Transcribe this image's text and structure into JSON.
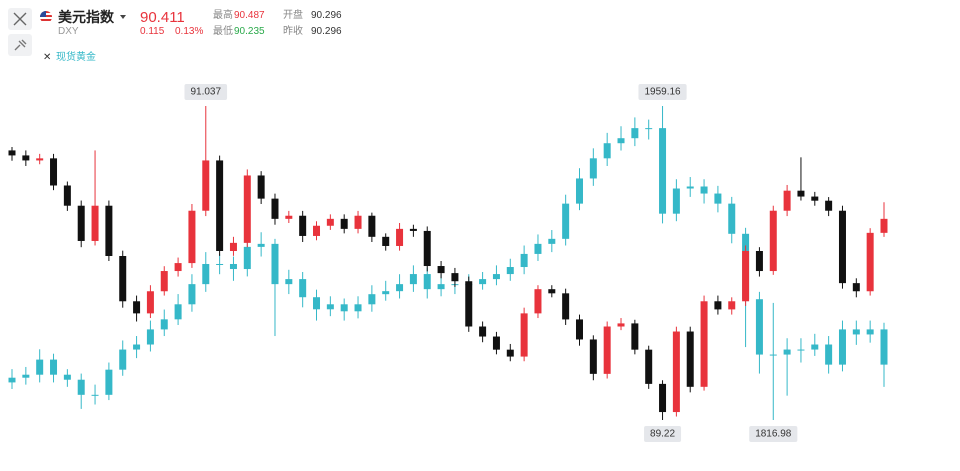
{
  "header": {
    "title": "美元指数",
    "code": "DXY",
    "last": 90.411,
    "change": 0.115,
    "change_pct": "0.13%",
    "high_label": "最高",
    "high": 90.487,
    "open_label": "开盘",
    "open": 90.296,
    "low_label": "最低",
    "low": 90.235,
    "prev_label": "昨收",
    "prev": 90.296
  },
  "chart_data": {
    "type": "candlestick",
    "series": [
      {
        "name": "美元指数",
        "up_color": "#e8333c",
        "down_color": "#111111",
        "open": [
          90.78,
          90.751,
          90.722,
          90.734,
          90.577,
          90.46,
          90.256,
          90.46,
          90.169,
          89.907,
          89.837,
          89.965,
          90.082,
          90.128,
          90.431,
          90.722,
          90.198,
          90.245,
          90.635,
          90.501,
          90.384,
          90.402,
          90.285,
          90.344,
          90.384,
          90.326,
          90.402,
          90.28,
          90.227,
          90.326,
          90.314,
          90.111,
          90.07,
          90.023,
          89.761,
          89.703,
          89.627,
          89.587,
          89.837,
          89.977,
          89.953,
          89.802,
          89.686,
          89.487,
          89.761,
          89.779,
          89.627,
          89.429,
          89.266,
          89.732,
          89.412,
          89.907,
          89.86,
          89.907,
          90.198,
          90.082,
          90.431,
          90.547,
          90.513,
          90.489,
          90.431,
          90.012,
          89.965,
          90.303
        ],
        "high": [
          90.8,
          90.78,
          90.76,
          90.76,
          90.6,
          90.49,
          90.78,
          90.49,
          90.2,
          89.94,
          90.0,
          90.11,
          90.16,
          90.47,
          91.037,
          90.75,
          90.28,
          90.67,
          90.66,
          90.53,
          90.43,
          90.43,
          90.37,
          90.41,
          90.41,
          90.43,
          90.42,
          90.3,
          90.36,
          90.35,
          90.34,
          90.14,
          90.1,
          90.05,
          89.79,
          89.73,
          89.66,
          89.87,
          90.0,
          90.0,
          89.98,
          89.83,
          89.71,
          89.79,
          89.81,
          89.8,
          89.65,
          89.45,
          89.76,
          89.76,
          89.94,
          89.94,
          89.93,
          90.23,
          90.22,
          90.46,
          90.58,
          90.74,
          90.54,
          90.51,
          90.46,
          90.04,
          90.33,
          90.48
        ],
        "low": [
          90.72,
          90.69,
          90.7,
          90.55,
          90.43,
          90.22,
          90.23,
          90.14,
          89.87,
          89.79,
          89.81,
          89.94,
          90.05,
          90.1,
          90.4,
          90.17,
          90.17,
          90.22,
          90.47,
          90.35,
          90.36,
          90.25,
          90.26,
          90.32,
          90.3,
          90.3,
          90.25,
          90.2,
          90.2,
          90.28,
          90.08,
          90.04,
          89.99,
          89.73,
          89.67,
          89.6,
          89.56,
          89.56,
          89.81,
          89.93,
          89.77,
          89.65,
          89.45,
          89.46,
          89.74,
          89.6,
          89.4,
          89.22,
          89.24,
          89.38,
          89.39,
          89.83,
          89.83,
          89.88,
          90.05,
          90.06,
          90.4,
          90.49,
          90.46,
          90.4,
          89.98,
          89.93,
          89.94,
          90.28
        ],
        "close": [
          90.751,
          90.722,
          90.734,
          90.577,
          90.46,
          90.256,
          90.46,
          90.169,
          89.907,
          89.837,
          89.965,
          90.082,
          90.128,
          90.431,
          90.722,
          90.198,
          90.245,
          90.635,
          90.501,
          90.384,
          90.402,
          90.285,
          90.344,
          90.384,
          90.326,
          90.402,
          90.28,
          90.227,
          90.326,
          90.314,
          90.111,
          90.07,
          90.023,
          89.761,
          89.703,
          89.627,
          89.587,
          89.837,
          89.977,
          89.953,
          89.802,
          89.686,
          89.487,
          89.761,
          89.779,
          89.627,
          89.429,
          89.266,
          89.732,
          89.412,
          89.907,
          89.86,
          89.907,
          90.198,
          90.082,
          90.431,
          90.547,
          90.513,
          90.489,
          90.431,
          90.012,
          89.965,
          90.303,
          90.384
        ],
        "high_label": 91.037,
        "low_label": 89.22
      },
      {
        "name": "现货黄金",
        "up_color": "#35b8c8",
        "down_color": "#35b8c8",
        "open": [
          1834.0,
          1836.13,
          1837.49,
          1844.33,
          1837.49,
          1835.22,
          1828.38,
          1828.38,
          1839.77,
          1848.88,
          1851.16,
          1858.0,
          1862.56,
          1869.37,
          1878.5,
          1887.62,
          1887.62,
          1885.34,
          1895.37,
          1896.73,
          1878.5,
          1880.78,
          1872.58,
          1867.11,
          1869.37,
          1866.2,
          1869.37,
          1873.95,
          1875.32,
          1878.5,
          1883.06,
          1876.23,
          1878.5,
          1878.5,
          1878.5,
          1880.78,
          1883.06,
          1886.25,
          1892.18,
          1896.73,
          1899.01,
          1914.95,
          1926.35,
          1935.47,
          1942.31,
          1944.58,
          1949.14,
          1949.14,
          1910.4,
          1921.8,
          1922.71,
          1919.52,
          1914.95,
          1901.29,
          1871.67,
          1846.61,
          1846.61,
          1848.88,
          1848.88,
          1851.16,
          1842.05,
          1858.0,
          1855.72,
          1858.0
        ],
        "high": [
          1840,
          1841,
          1849,
          1847,
          1840,
          1838,
          1833,
          1843,
          1853,
          1855,
          1862,
          1867,
          1874,
          1883,
          1893,
          1892,
          1891,
          1900,
          1902,
          1899,
          1885,
          1884,
          1876,
          1873,
          1872,
          1873,
          1878,
          1880,
          1883,
          1887,
          1886,
          1883,
          1882,
          1883,
          1884,
          1887,
          1890,
          1896,
          1901,
          1903,
          1919,
          1931,
          1940,
          1947,
          1950,
          1954,
          1953,
          1959.16,
          1926,
          1927,
          1926,
          1923,
          1918,
          1904,
          1875,
          1870,
          1854,
          1854,
          1856,
          1855,
          1862,
          1862,
          1862,
          1861
        ],
        "low": [
          1831,
          1833,
          1834,
          1834,
          1832,
          1822,
          1824,
          1826,
          1837,
          1845,
          1848,
          1855,
          1860,
          1866,
          1875,
          1883,
          1880,
          1882,
          1891,
          1855,
          1874,
          1868,
          1862,
          1864,
          1862,
          1863,
          1866,
          1871,
          1872,
          1875,
          1872,
          1873,
          1874,
          1875,
          1876,
          1878,
          1880,
          1883,
          1889,
          1893,
          1896,
          1912,
          1923,
          1932,
          1939,
          1941,
          1944,
          1906,
          1907,
          1918,
          1915,
          1911,
          1897,
          1850,
          1838,
          1816.98,
          1828,
          1843,
          1846,
          1838,
          1839,
          1851,
          1852,
          1832
        ],
        "close": [
          1836.13,
          1837.49,
          1844.33,
          1837.49,
          1835.22,
          1828.38,
          1828.38,
          1839.77,
          1848.88,
          1851.16,
          1858.0,
          1862.56,
          1869.37,
          1878.5,
          1887.62,
          1887.62,
          1885.34,
          1895.37,
          1896.73,
          1878.5,
          1880.78,
          1872.58,
          1867.11,
          1869.37,
          1866.2,
          1869.37,
          1873.95,
          1875.32,
          1878.5,
          1883.06,
          1876.23,
          1878.5,
          1878.5,
          1878.5,
          1880.78,
          1883.06,
          1886.25,
          1892.18,
          1896.73,
          1899.01,
          1914.95,
          1926.35,
          1935.47,
          1942.31,
          1944.58,
          1949.14,
          1949.14,
          1910.4,
          1921.8,
          1922.71,
          1919.52,
          1914.95,
          1901.29,
          1871.67,
          1846.61,
          1846.61,
          1848.88,
          1848.88,
          1851.16,
          1842.05,
          1858.0,
          1855.72,
          1858.0,
          1842.05
        ],
        "high_label": 1959.16,
        "low_label": 1816.98
      }
    ]
  }
}
